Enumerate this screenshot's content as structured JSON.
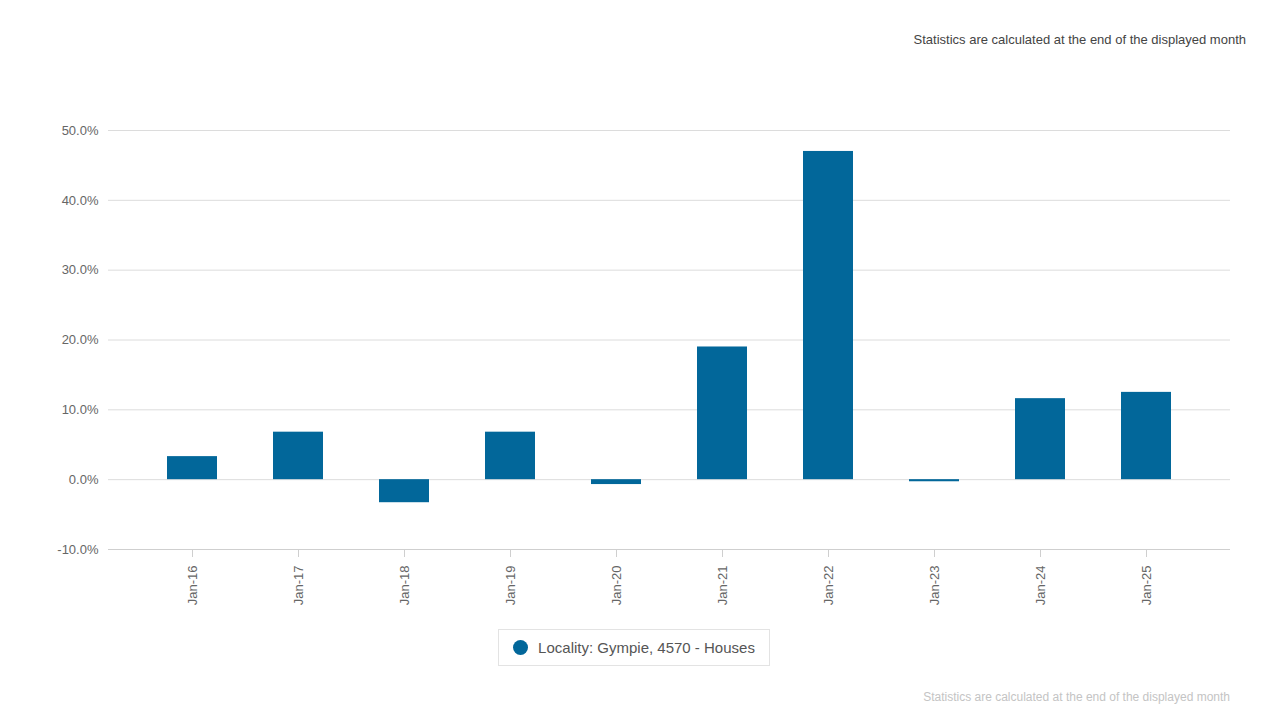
{
  "chart_data": {
    "type": "bar",
    "subtitle": "Statistics are calculated at the end of the displayed month",
    "caption": "Statistics are calculated at the end of the displayed month",
    "categories": [
      "Jan-16",
      "Jan-17",
      "Jan-18",
      "Jan-19",
      "Jan-20",
      "Jan-21",
      "Jan-22",
      "Jan-23",
      "Jan-24",
      "Jan-25"
    ],
    "series": [
      {
        "name": "Locality: Gympie, 4570 - Houses",
        "color": "#02679a",
        "values": [
          3.3,
          6.8,
          -3.3,
          6.8,
          -0.7,
          19.0,
          47.0,
          -0.3,
          11.6,
          12.5
        ]
      }
    ],
    "ylim": [
      -10,
      50
    ],
    "yticks": [
      {
        "value": -10,
        "label": "-10.0%"
      },
      {
        "value": 0,
        "label": "0.0%"
      },
      {
        "value": 10,
        "label": "10.0%"
      },
      {
        "value": 20,
        "label": "20.0%"
      },
      {
        "value": 30,
        "label": "30.0%"
      },
      {
        "value": 40,
        "label": "40.0%"
      },
      {
        "value": 50,
        "label": "50.0%"
      }
    ],
    "grid": true,
    "legend": "bottom"
  }
}
